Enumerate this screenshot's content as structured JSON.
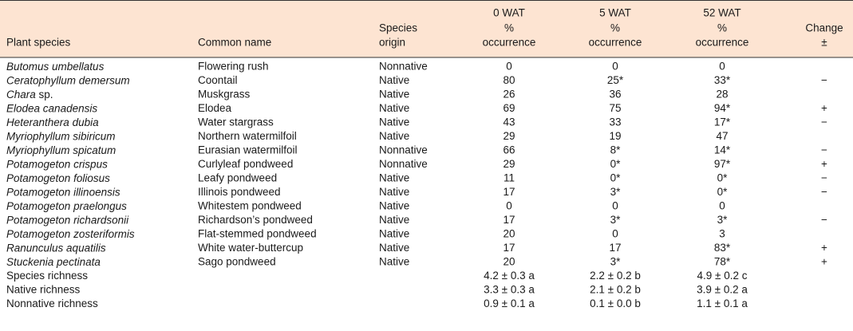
{
  "table": {
    "headers": [
      [
        "Plant species"
      ],
      [
        "Common name"
      ],
      [
        "Species",
        "origin"
      ],
      [
        "0 WAT",
        "%",
        "occurrence"
      ],
      [
        "5 WAT",
        "%",
        "occurrence"
      ],
      [
        "52 WAT",
        "%",
        "occurrence"
      ],
      [
        "Change",
        "±"
      ]
    ],
    "rows": [
      [
        "Butomus umbellatus",
        "Flowering rush",
        "Nonnative",
        "0",
        "0",
        "0",
        null
      ],
      [
        "Ceratophyllum demersum",
        "Coontail",
        "Native",
        "80",
        "25*",
        "33*",
        "−"
      ],
      [
        "Chara sp.",
        "Muskgrass",
        "Native",
        "26",
        "36",
        "28",
        null
      ],
      [
        "Elodea canadensis",
        "Elodea",
        "Native",
        "69",
        "75",
        "94*",
        "+"
      ],
      [
        "Heteranthera dubia",
        "Water stargrass",
        "Native",
        "43",
        "33",
        "17*",
        "−"
      ],
      [
        "Myriophyllum sibiricum",
        "Northern watermilfoil",
        "Native",
        "29",
        "19",
        "47",
        null
      ],
      [
        "Myriophyllum spicatum",
        "Eurasian watermilfoil",
        "Nonnative",
        "66",
        "8*",
        "14*",
        "−"
      ],
      [
        "Potamogeton crispus",
        "Curlyleaf pondweed",
        "Nonnative",
        "29",
        "0*",
        "97*",
        "+"
      ],
      [
        "Potamogeton foliosus",
        "Leafy pondweed",
        "Native",
        "11",
        "0*",
        "0*",
        "−"
      ],
      [
        "Potamogeton illinoensis",
        "Illinois pondweed",
        "Native",
        "17",
        "3*",
        "0*",
        "−"
      ],
      [
        "Potamogeton praelongus",
        "Whitestem pondweed",
        "Native",
        "0",
        "0",
        "0",
        null
      ],
      [
        "Potamogeton richardsonii",
        "Richardson’s pondweed",
        "Native",
        "17",
        "3*",
        "3*",
        "−"
      ],
      [
        "Potamogeton zosteriformis",
        "Flat-stemmed pondweed",
        "Native",
        "20",
        "0",
        "3",
        null
      ],
      [
        "Ranunculus aquatilis",
        "White water-buttercup",
        "Native",
        "17",
        "17",
        "83*",
        "+"
      ],
      [
        "Stuckenia pectinata",
        "Sago pondweed",
        "Native",
        "20",
        "3*",
        "78*",
        "+"
      ]
    ],
    "summary_rows": [
      [
        "Species richness",
        "4.2 ± 0.3 a",
        "2.2 ± 0.2 b",
        "4.9 ± 0.2 c"
      ],
      [
        "Native richness",
        "3.3 ± 0.3 a",
        "2.1 ± 0.2 b",
        "3.9 ± 0.2 a"
      ],
      [
        "Nonnative richness",
        "0.9 ± 0.1 a",
        "0.1 ± 0.0 b",
        "1.1 ± 0.1 a"
      ]
    ]
  }
}
